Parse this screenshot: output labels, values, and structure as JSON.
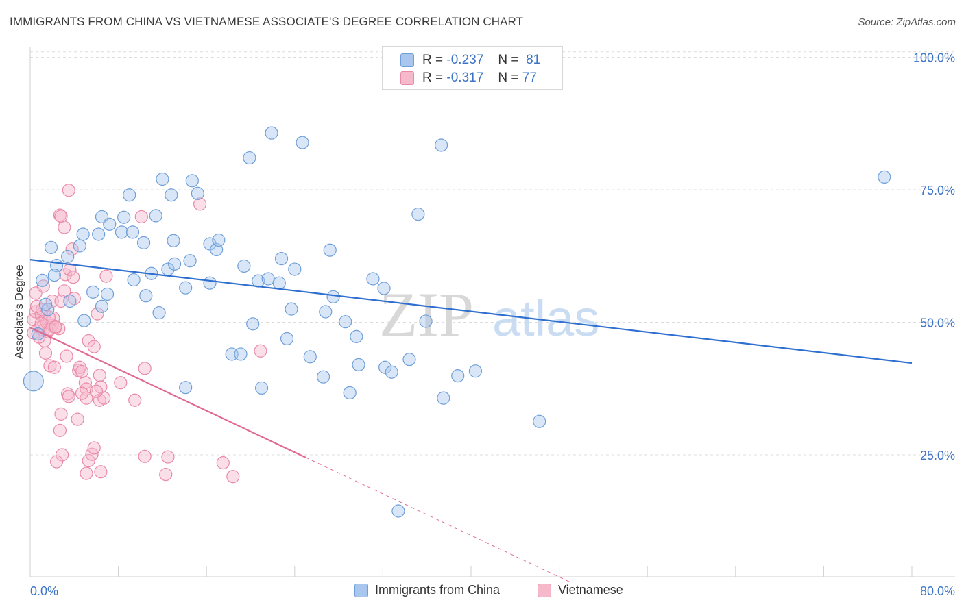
{
  "header": {
    "title": "IMMIGRANTS FROM CHINA VS VIETNAMESE ASSOCIATE'S DEGREE CORRELATION CHART",
    "source": "Source: ZipAtlas.com"
  },
  "watermark": {
    "zip": "ZIP",
    "atlas": "atlas"
  },
  "legend": {
    "rows": [
      {
        "r_label": "R =",
        "r_value": "-0.237",
        "n_label": "N =",
        "n_value": "81",
        "color": "#a9c7ee"
      },
      {
        "r_label": "R =",
        "r_value": "-0.317",
        "n_label": "N =",
        "n_value": "77",
        "color": "#f6b8cb"
      }
    ]
  },
  "bottom_legend": {
    "series1": "Immigrants from China",
    "series2": "Vietnamese"
  },
  "colors": {
    "blue_fill": "#a9c7ee",
    "blue_stroke": "#6f9fd8",
    "blue_line": "#2f6fcf",
    "pink_fill": "#f6b8cb",
    "pink_stroke": "#e98aa8",
    "pink_line": "#e06a93",
    "tick": "#3d74c7"
  },
  "chart_data": {
    "type": "scatter",
    "title": "IMMIGRANTS FROM CHINA VS VIETNAMESE ASSOCIATE'S DEGREE CORRELATION CHART",
    "xlabel": "",
    "ylabel": "Associate's Degree",
    "xlim": [
      0,
      80
    ],
    "ylim": [
      2,
      102
    ],
    "x_tick_labels": [
      "0.0%",
      "80.0%"
    ],
    "y_ticks": [
      25,
      50,
      75,
      100
    ],
    "y_tick_labels": [
      "25.0%",
      "50.0%",
      "75.0%",
      "100.0%"
    ],
    "grid": true,
    "series": [
      {
        "name": "Immigrants from China",
        "r": -0.237,
        "n": 81,
        "trend": {
          "x0": 0,
          "y0": 61.8,
          "x1": 80,
          "y1": 42.3
        },
        "points": [
          [
            0.3,
            38.9,
            1.6
          ],
          [
            2.4,
            60.7,
            1
          ],
          [
            4.5,
            64.4,
            1
          ],
          [
            1.9,
            64.1,
            1
          ],
          [
            3.4,
            62.4,
            1
          ],
          [
            1.6,
            52.4,
            1
          ],
          [
            1.4,
            53.4,
            1
          ],
          [
            1.1,
            57.9,
            1
          ],
          [
            2.2,
            58.9,
            1
          ],
          [
            0.7,
            47.8,
            1
          ],
          [
            4.8,
            66.6,
            1
          ],
          [
            6.2,
            66.6,
            1
          ],
          [
            6.5,
            69.9,
            1
          ],
          [
            8.5,
            69.8,
            1
          ],
          [
            8.3,
            67.0,
            1
          ],
          [
            7.2,
            68.5,
            1
          ],
          [
            9.3,
            67.0,
            1
          ],
          [
            9.0,
            74.0,
            1
          ],
          [
            10.3,
            65.0,
            1
          ],
          [
            11.0,
            59.2,
            1
          ],
          [
            11.4,
            70.1,
            1
          ],
          [
            11.7,
            51.8,
            1
          ],
          [
            12.5,
            60.0,
            1
          ],
          [
            12.0,
            77.0,
            1
          ],
          [
            12.8,
            74.0,
            1
          ],
          [
            13.0,
            65.4,
            1
          ],
          [
            14.1,
            56.5,
            1
          ],
          [
            13.1,
            61.0,
            1
          ],
          [
            14.5,
            61.6,
            1
          ],
          [
            14.1,
            37.7,
            1
          ],
          [
            14.7,
            76.7,
            1
          ],
          [
            15.2,
            74.3,
            1
          ],
          [
            16.3,
            57.4,
            1
          ],
          [
            16.3,
            64.8,
            1
          ],
          [
            16.9,
            63.7,
            1
          ],
          [
            17.1,
            65.5,
            1
          ],
          [
            18.3,
            44.0,
            1
          ],
          [
            19.1,
            44.0,
            1
          ],
          [
            19.4,
            60.6,
            1
          ],
          [
            19.9,
            81.0,
            1
          ],
          [
            20.2,
            49.7,
            1
          ],
          [
            20.7,
            57.8,
            1
          ],
          [
            21.0,
            37.6,
            1
          ],
          [
            21.6,
            58.2,
            1
          ],
          [
            21.9,
            85.7,
            1
          ],
          [
            22.6,
            57.4,
            1
          ],
          [
            22.8,
            62.0,
            1
          ],
          [
            23.3,
            46.9,
            1
          ],
          [
            23.7,
            52.5,
            1
          ],
          [
            24.0,
            60.0,
            1
          ],
          [
            24.7,
            83.9,
            1
          ],
          [
            25.4,
            43.5,
            1
          ],
          [
            26.6,
            39.7,
            1
          ],
          [
            26.8,
            52.0,
            1
          ],
          [
            27.2,
            63.6,
            1
          ],
          [
            27.5,
            54.8,
            1
          ],
          [
            28.6,
            50.1,
            1
          ],
          [
            29.0,
            36.7,
            1
          ],
          [
            29.6,
            47.3,
            1
          ],
          [
            29.8,
            42.0,
            1
          ],
          [
            31.1,
            58.2,
            1
          ],
          [
            32.1,
            56.4,
            1
          ],
          [
            32.2,
            41.5,
            1
          ],
          [
            32.8,
            40.6,
            1
          ],
          [
            33.4,
            14.4,
            1
          ],
          [
            34.4,
            43.0,
            1
          ],
          [
            35.2,
            70.4,
            1
          ],
          [
            35.9,
            50.2,
            1
          ],
          [
            37.3,
            83.4,
            1
          ],
          [
            37.5,
            35.7,
            1
          ],
          [
            38.8,
            39.9,
            1
          ],
          [
            40.4,
            40.8,
            1
          ],
          [
            46.2,
            31.3,
            1
          ],
          [
            77.5,
            77.4,
            1
          ],
          [
            4.9,
            50.3,
            1
          ],
          [
            6.5,
            53.0,
            1
          ],
          [
            5.7,
            55.7,
            1
          ],
          [
            7.0,
            55.3,
            1
          ],
          [
            9.4,
            58.0,
            1
          ],
          [
            10.5,
            55.0,
            1
          ],
          [
            3.6,
            54.0,
            1
          ]
        ]
      },
      {
        "name": "Vietnamese",
        "r": -0.317,
        "n": 77,
        "trend": {
          "x0": 0,
          "y0": 49.0,
          "x1": 25,
          "y1": 24.5,
          "dash_to_x": 49
        },
        "points": [
          [
            0.3,
            48.0,
            1
          ],
          [
            0.3,
            50.5,
            1
          ],
          [
            0.5,
            52.0,
            1
          ],
          [
            0.5,
            55.5,
            1
          ],
          [
            0.9,
            49.0,
            1
          ],
          [
            1.0,
            51.5,
            1
          ],
          [
            1.1,
            52.4,
            1
          ],
          [
            1.2,
            48.5,
            1
          ],
          [
            1.3,
            46.5,
            1
          ],
          [
            1.4,
            44.2,
            1
          ],
          [
            1.5,
            50.0,
            1
          ],
          [
            1.6,
            48.2,
            1
          ],
          [
            1.8,
            41.8,
            1
          ],
          [
            2.0,
            49.5,
            1
          ],
          [
            2.1,
            50.8,
            1
          ],
          [
            2.3,
            49.0,
            1
          ],
          [
            1.2,
            56.8,
            1
          ],
          [
            2.0,
            54.0,
            1
          ],
          [
            2.7,
            70.2,
            1
          ],
          [
            2.8,
            70.0,
            1
          ],
          [
            3.1,
            67.9,
            1
          ],
          [
            3.1,
            55.9,
            1
          ],
          [
            3.5,
            74.9,
            1
          ],
          [
            2.8,
            54.0,
            1
          ],
          [
            3.2,
            59.0,
            1
          ],
          [
            3.8,
            63.8,
            1
          ],
          [
            3.6,
            59.9,
            1
          ],
          [
            3.9,
            58.5,
            1
          ],
          [
            3.3,
            43.6,
            1
          ],
          [
            3.4,
            36.5,
            1
          ],
          [
            3.5,
            36.0,
            1
          ],
          [
            2.2,
            41.5,
            1
          ],
          [
            2.8,
            32.7,
            1
          ],
          [
            2.7,
            29.6,
            1
          ],
          [
            2.9,
            25.0,
            1
          ],
          [
            2.4,
            23.7,
            1
          ],
          [
            4.3,
            31.7,
            1
          ],
          [
            4.4,
            40.9,
            1
          ],
          [
            4.5,
            41.5,
            1
          ],
          [
            5.0,
            38.6,
            1
          ],
          [
            5.1,
            37.4,
            1
          ],
          [
            5.1,
            35.7,
            1
          ],
          [
            4.7,
            36.6,
            1
          ],
          [
            5.3,
            46.5,
            1
          ],
          [
            5.8,
            45.4,
            1
          ],
          [
            6.1,
            51.6,
            1
          ],
          [
            5.3,
            23.9,
            1
          ],
          [
            5.6,
            25.1,
            1
          ],
          [
            5.8,
            26.3,
            1
          ],
          [
            5.1,
            21.5,
            1
          ],
          [
            6.3,
            35.3,
            1
          ],
          [
            6.4,
            37.8,
            1
          ],
          [
            6.4,
            21.8,
            1
          ],
          [
            6.9,
            58.7,
            1
          ],
          [
            6.3,
            40.0,
            1
          ],
          [
            6.7,
            35.7,
            1
          ],
          [
            8.2,
            38.6,
            1
          ],
          [
            9.5,
            35.3,
            1
          ],
          [
            10.1,
            69.9,
            1
          ],
          [
            10.4,
            41.3,
            1
          ],
          [
            10.4,
            24.7,
            1
          ],
          [
            12.3,
            21.3,
            1
          ],
          [
            12.5,
            24.6,
            1
          ],
          [
            15.4,
            72.3,
            1
          ],
          [
            17.5,
            23.5,
            1
          ],
          [
            18.4,
            20.9,
            1
          ],
          [
            20.9,
            44.6,
            1
          ],
          [
            6.0,
            37.0,
            1
          ],
          [
            4.7,
            40.7,
            1
          ],
          [
            1.8,
            48.7,
            1
          ],
          [
            2.6,
            48.8,
            1
          ],
          [
            0.8,
            47.2,
            1
          ],
          [
            1.7,
            51.0,
            1
          ],
          [
            4.0,
            54.5,
            1
          ],
          [
            0.6,
            53.0,
            1
          ],
          [
            1.0,
            49.8,
            1
          ],
          [
            2.3,
            49.2,
            1
          ]
        ]
      }
    ]
  }
}
